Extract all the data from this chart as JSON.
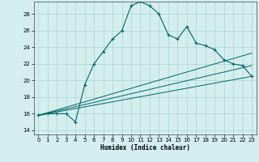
{
  "xlabel": "Humidex (Indice chaleur)",
  "bg_color": "#d4eeee",
  "grid_color": "#aad4d4",
  "line_color": "#006666",
  "xlim": [
    -0.5,
    23.5
  ],
  "ylim": [
    13.5,
    29.5
  ],
  "yticks": [
    14,
    16,
    18,
    20,
    22,
    24,
    26,
    28
  ],
  "xticks": [
    0,
    1,
    2,
    3,
    4,
    5,
    6,
    7,
    8,
    9,
    10,
    11,
    12,
    13,
    14,
    15,
    16,
    17,
    18,
    19,
    20,
    21,
    22,
    23
  ],
  "main_x": [
    0,
    1,
    2,
    3,
    4,
    5,
    6,
    7,
    8,
    9,
    10,
    11,
    12,
    13,
    14,
    15,
    16,
    17,
    18,
    19,
    20,
    21,
    22,
    23
  ],
  "main_y": [
    15.8,
    16.0,
    16.0,
    16.0,
    15.0,
    19.5,
    22.0,
    23.5,
    25.0,
    26.0,
    29.0,
    29.5,
    29.0,
    28.0,
    25.5,
    25.0,
    26.5,
    24.5,
    24.2,
    23.7,
    22.5,
    22.0,
    21.8,
    20.5
  ],
  "line1_x": [
    0,
    23
  ],
  "line1_y": [
    15.8,
    20.5
  ],
  "line2_x": [
    0,
    23
  ],
  "line2_y": [
    15.8,
    21.8
  ],
  "line3_x": [
    0,
    23
  ],
  "line3_y": [
    15.8,
    23.3
  ]
}
